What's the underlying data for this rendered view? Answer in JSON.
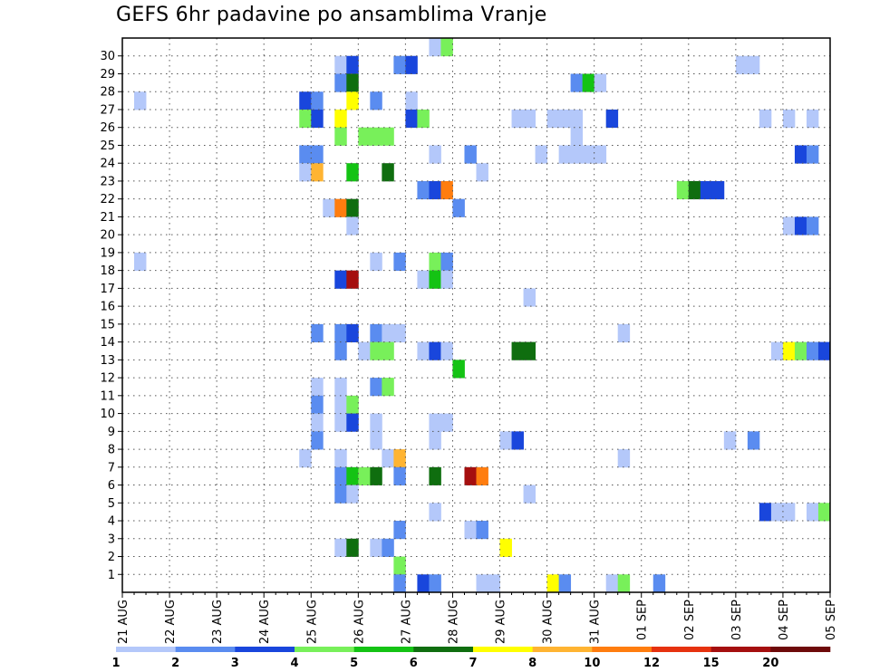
{
  "chart_data": {
    "type": "heatmap",
    "title": "GEFS 6hr padavine po ansamblima Vranje",
    "y_ticks": [
      "1",
      "2",
      "3",
      "4",
      "5",
      "6",
      "7",
      "8",
      "9",
      "10",
      "11",
      "12",
      "13",
      "14",
      "15",
      "16",
      "17",
      "18",
      "19",
      "20",
      "21",
      "22",
      "23",
      "24",
      "25",
      "26",
      "27",
      "28",
      "29",
      "30"
    ],
    "x_ticks": [
      "21 AUG",
      "22 AUG",
      "23 AUG",
      "24 AUG",
      "25 AUG",
      "26 AUG",
      "27 AUG",
      "28 AUG",
      "29 AUG",
      "30 AUG",
      "31 AUG",
      "01 SEP",
      "02 SEP",
      "03 SEP",
      "04 SEP",
      "05 SEP"
    ],
    "x_step_hours": 6,
    "ylim": [
      0,
      30
    ],
    "grid": true,
    "colorbar": {
      "labels": [
        "1",
        "2",
        "3",
        "4",
        "5",
        "6",
        "7",
        "8",
        "10",
        "12",
        "15",
        "20"
      ],
      "colors": [
        "#b4c8fa",
        "#5a8cf0",
        "#1946dc",
        "#78f05a",
        "#14c314",
        "#0f6e0f",
        "#ffff00",
        "#ffb432",
        "#ff7d0f",
        "#e6320f",
        "#a50f0f",
        "#6e0a0a"
      ]
    },
    "cells": [
      {
        "m": 30,
        "s": 26,
        "c": 1
      },
      {
        "m": 30,
        "s": 27,
        "c": 4
      },
      {
        "m": 29,
        "s": 18,
        "c": 1
      },
      {
        "m": 29,
        "s": 19,
        "c": 3
      },
      {
        "m": 29,
        "s": 23,
        "c": 2
      },
      {
        "m": 29,
        "s": 24,
        "c": 3
      },
      {
        "m": 29,
        "s": 52,
        "c": 1
      },
      {
        "m": 29,
        "s": 53,
        "c": 1
      },
      {
        "m": 28,
        "s": 18,
        "c": 2
      },
      {
        "m": 28,
        "s": 19,
        "c": 6
      },
      {
        "m": 28,
        "s": 38,
        "c": 2
      },
      {
        "m": 28,
        "s": 39,
        "c": 5
      },
      {
        "m": 28,
        "s": 40,
        "c": 1
      },
      {
        "m": 27,
        "s": 1,
        "c": 1
      },
      {
        "m": 27,
        "s": 15,
        "c": 3
      },
      {
        "m": 27,
        "s": 16,
        "c": 2
      },
      {
        "m": 27,
        "s": 19,
        "c": 7
      },
      {
        "m": 27,
        "s": 21,
        "c": 2
      },
      {
        "m": 27,
        "s": 24,
        "c": 1
      },
      {
        "m": 26,
        "s": 15,
        "c": 4
      },
      {
        "m": 26,
        "s": 16,
        "c": 3
      },
      {
        "m": 26,
        "s": 18,
        "c": 7
      },
      {
        "m": 26,
        "s": 24,
        "c": 3
      },
      {
        "m": 26,
        "s": 25,
        "c": 4
      },
      {
        "m": 26,
        "s": 33,
        "c": 1
      },
      {
        "m": 26,
        "s": 34,
        "c": 1
      },
      {
        "m": 26,
        "s": 36,
        "c": 1
      },
      {
        "m": 26,
        "s": 37,
        "c": 1
      },
      {
        "m": 26,
        "s": 38,
        "c": 1
      },
      {
        "m": 26,
        "s": 41,
        "c": 3
      },
      {
        "m": 26,
        "s": 54,
        "c": 1
      },
      {
        "m": 26,
        "s": 56,
        "c": 1
      },
      {
        "m": 26,
        "s": 58,
        "c": 1
      },
      {
        "m": 25,
        "s": 18,
        "c": 4
      },
      {
        "m": 25,
        "s": 20,
        "c": 4
      },
      {
        "m": 25,
        "s": 21,
        "c": 4
      },
      {
        "m": 25,
        "s": 22,
        "c": 4
      },
      {
        "m": 25,
        "s": 38,
        "c": 1
      },
      {
        "m": 24,
        "s": 15,
        "c": 2
      },
      {
        "m": 24,
        "s": 16,
        "c": 2
      },
      {
        "m": 24,
        "s": 26,
        "c": 1
      },
      {
        "m": 24,
        "s": 29,
        "c": 2
      },
      {
        "m": 24,
        "s": 35,
        "c": 1
      },
      {
        "m": 24,
        "s": 37,
        "c": 1
      },
      {
        "m": 24,
        "s": 38,
        "c": 1
      },
      {
        "m": 24,
        "s": 39,
        "c": 1
      },
      {
        "m": 24,
        "s": 40,
        "c": 1
      },
      {
        "m": 24,
        "s": 57,
        "c": 3
      },
      {
        "m": 24,
        "s": 58,
        "c": 2
      },
      {
        "m": 23,
        "s": 15,
        "c": 1
      },
      {
        "m": 23,
        "s": 16,
        "c": 8
      },
      {
        "m": 23,
        "s": 19,
        "c": 5
      },
      {
        "m": 23,
        "s": 22,
        "c": 6
      },
      {
        "m": 23,
        "s": 30,
        "c": 1
      },
      {
        "m": 22,
        "s": 25,
        "c": 2
      },
      {
        "m": 22,
        "s": 26,
        "c": 3
      },
      {
        "m": 22,
        "s": 27,
        "c": 9
      },
      {
        "m": 22,
        "s": 47,
        "c": 4
      },
      {
        "m": 22,
        "s": 48,
        "c": 6
      },
      {
        "m": 22,
        "s": 49,
        "c": 3
      },
      {
        "m": 22,
        "s": 50,
        "c": 3
      },
      {
        "m": 21,
        "s": 17,
        "c": 1
      },
      {
        "m": 21,
        "s": 18,
        "c": 9
      },
      {
        "m": 21,
        "s": 19,
        "c": 6
      },
      {
        "m": 21,
        "s": 28,
        "c": 2
      },
      {
        "m": 20,
        "s": 19,
        "c": 1
      },
      {
        "m": 20,
        "s": 56,
        "c": 1
      },
      {
        "m": 20,
        "s": 57,
        "c": 3
      },
      {
        "m": 20,
        "s": 58,
        "c": 2
      },
      {
        "m": 18,
        "s": 1,
        "c": 1
      },
      {
        "m": 18,
        "s": 21,
        "c": 1
      },
      {
        "m": 18,
        "s": 23,
        "c": 2
      },
      {
        "m": 18,
        "s": 26,
        "c": 4
      },
      {
        "m": 18,
        "s": 27,
        "c": 2
      },
      {
        "m": 17,
        "s": 18,
        "c": 3
      },
      {
        "m": 17,
        "s": 19,
        "c": 11
      },
      {
        "m": 17,
        "s": 25,
        "c": 1
      },
      {
        "m": 17,
        "s": 26,
        "c": 5
      },
      {
        "m": 17,
        "s": 27,
        "c": 1
      },
      {
        "m": 16,
        "s": 34,
        "c": 1
      },
      {
        "m": 14,
        "s": 16,
        "c": 2
      },
      {
        "m": 14,
        "s": 18,
        "c": 2
      },
      {
        "m": 14,
        "s": 19,
        "c": 3
      },
      {
        "m": 14,
        "s": 21,
        "c": 2
      },
      {
        "m": 14,
        "s": 22,
        "c": 1
      },
      {
        "m": 14,
        "s": 23,
        "c": 1
      },
      {
        "m": 14,
        "s": 42,
        "c": 1
      },
      {
        "m": 13,
        "s": 18,
        "c": 2
      },
      {
        "m": 13,
        "s": 20,
        "c": 1
      },
      {
        "m": 13,
        "s": 21,
        "c": 4
      },
      {
        "m": 13,
        "s": 22,
        "c": 4
      },
      {
        "m": 13,
        "s": 25,
        "c": 1
      },
      {
        "m": 13,
        "s": 26,
        "c": 3
      },
      {
        "m": 13,
        "s": 27,
        "c": 1
      },
      {
        "m": 13,
        "s": 33,
        "c": 6
      },
      {
        "m": 13,
        "s": 34,
        "c": 6
      },
      {
        "m": 13,
        "s": 55,
        "c": 1
      },
      {
        "m": 13,
        "s": 56,
        "c": 7
      },
      {
        "m": 13,
        "s": 57,
        "c": 4
      },
      {
        "m": 13,
        "s": 58,
        "c": 2
      },
      {
        "m": 13,
        "s": 59,
        "c": 3
      },
      {
        "m": 12,
        "s": 28,
        "c": 5
      },
      {
        "m": 11,
        "s": 16,
        "c": 1
      },
      {
        "m": 11,
        "s": 18,
        "c": 1
      },
      {
        "m": 11,
        "s": 21,
        "c": 2
      },
      {
        "m": 11,
        "s": 22,
        "c": 4
      },
      {
        "m": 10,
        "s": 16,
        "c": 2
      },
      {
        "m": 10,
        "s": 18,
        "c": 1
      },
      {
        "m": 10,
        "s": 19,
        "c": 4
      },
      {
        "m": 9,
        "s": 16,
        "c": 1
      },
      {
        "m": 9,
        "s": 18,
        "c": 1
      },
      {
        "m": 9,
        "s": 19,
        "c": 3
      },
      {
        "m": 9,
        "s": 21,
        "c": 1
      },
      {
        "m": 9,
        "s": 26,
        "c": 1
      },
      {
        "m": 9,
        "s": 27,
        "c": 1
      },
      {
        "m": 8,
        "s": 16,
        "c": 2
      },
      {
        "m": 8,
        "s": 21,
        "c": 1
      },
      {
        "m": 8,
        "s": 26,
        "c": 1
      },
      {
        "m": 8,
        "s": 32,
        "c": 1
      },
      {
        "m": 8,
        "s": 33,
        "c": 3
      },
      {
        "m": 8,
        "s": 51,
        "c": 1
      },
      {
        "m": 8,
        "s": 53,
        "c": 2
      },
      {
        "m": 7,
        "s": 15,
        "c": 1
      },
      {
        "m": 7,
        "s": 18,
        "c": 1
      },
      {
        "m": 7,
        "s": 22,
        "c": 1
      },
      {
        "m": 7,
        "s": 23,
        "c": 8
      },
      {
        "m": 7,
        "s": 42,
        "c": 1
      },
      {
        "m": 6,
        "s": 18,
        "c": 2
      },
      {
        "m": 6,
        "s": 19,
        "c": 5
      },
      {
        "m": 6,
        "s": 20,
        "c": 4
      },
      {
        "m": 6,
        "s": 21,
        "c": 6
      },
      {
        "m": 6,
        "s": 23,
        "c": 2
      },
      {
        "m": 6,
        "s": 26,
        "c": 6
      },
      {
        "m": 6,
        "s": 29,
        "c": 11
      },
      {
        "m": 6,
        "s": 30,
        "c": 9
      },
      {
        "m": 5,
        "s": 18,
        "c": 2
      },
      {
        "m": 5,
        "s": 19,
        "c": 1
      },
      {
        "m": 5,
        "s": 34,
        "c": 1
      },
      {
        "m": 4,
        "s": 26,
        "c": 1
      },
      {
        "m": 4,
        "s": 54,
        "c": 3
      },
      {
        "m": 4,
        "s": 55,
        "c": 1
      },
      {
        "m": 4,
        "s": 56,
        "c": 1
      },
      {
        "m": 4,
        "s": 58,
        "c": 1
      },
      {
        "m": 4,
        "s": 59,
        "c": 4
      },
      {
        "m": 3,
        "s": 23,
        "c": 2
      },
      {
        "m": 3,
        "s": 29,
        "c": 1
      },
      {
        "m": 3,
        "s": 30,
        "c": 2
      },
      {
        "m": 2,
        "s": 18,
        "c": 1
      },
      {
        "m": 2,
        "s": 19,
        "c": 6
      },
      {
        "m": 2,
        "s": 21,
        "c": 1
      },
      {
        "m": 2,
        "s": 22,
        "c": 2
      },
      {
        "m": 2,
        "s": 32,
        "c": 7
      },
      {
        "m": 1,
        "s": 23,
        "c": 4
      },
      {
        "m": 0,
        "s": 23,
        "c": 2
      },
      {
        "m": 0,
        "s": 25,
        "c": 3
      },
      {
        "m": 0,
        "s": 26,
        "c": 2
      },
      {
        "m": 0,
        "s": 30,
        "c": 1
      },
      {
        "m": 0,
        "s": 31,
        "c": 1
      },
      {
        "m": 0,
        "s": 36,
        "c": 7
      },
      {
        "m": 0,
        "s": 37,
        "c": 2
      },
      {
        "m": 0,
        "s": 41,
        "c": 1
      },
      {
        "m": 0,
        "s": 42,
        "c": 4
      },
      {
        "m": 0,
        "s": 45,
        "c": 2
      }
    ]
  }
}
